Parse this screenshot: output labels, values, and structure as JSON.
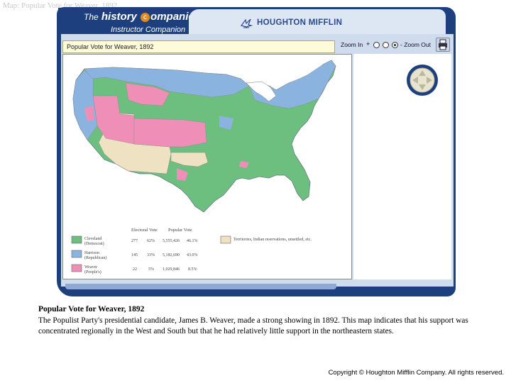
{
  "slide": {
    "title": "Map: Popular Vote for Weaver, 1892"
  },
  "header": {
    "brand_the": "The",
    "brand_history": "history",
    "brand_badge": "c",
    "brand_companion": "ompanion",
    "brand_subtitle": "Instructor Companion",
    "publisher": "HOUGHTON MIFFLIN",
    "publisher_logo_icon": "bird-logo-icon"
  },
  "viewer": {
    "map_title": "Popular Vote for Weaver, 1892",
    "zoom_in_label": "Zoom In",
    "zoom_plus": "+",
    "zoom_out_label": "- Zoom Out",
    "zoom_selected": 3,
    "print_icon": "printer-icon",
    "pan_icon": "pan-arrows-icon"
  },
  "legend": {
    "headers": {
      "electoral": "Electoral Vote",
      "popular": "Popular Vote"
    },
    "candidates": [
      {
        "name": "Cleveland",
        "party": "(Democrat)",
        "electoral": "277",
        "electoral_pct": "62%",
        "popular": "5,555,426",
        "popular_pct": "46.1%",
        "color": "#6cbf7e"
      },
      {
        "name": "Harrison",
        "party": "(Republican)",
        "electoral": "145",
        "electoral_pct": "33%",
        "popular": "5,182,690",
        "popular_pct": "43.0%",
        "color": "#8ab4df"
      },
      {
        "name": "Weaver",
        "party": "(People's)",
        "electoral": "22",
        "electoral_pct": "5%",
        "popular": "1,029,846",
        "popular_pct": "8.5%",
        "color": "#ef8fb8"
      }
    ],
    "territories": {
      "label": "Territories, Indian reservations, unsettled, etc.",
      "color": "#efe2c2"
    }
  },
  "caption": {
    "title": "Popular Vote for Weaver, 1892",
    "body": "The Populist Party's presidential candidate, James B. Weaver, made a strong showing in 1892. This map indicates that his support was concentrated regionally in the West and South but that he had relatively little support in the northeastern states."
  },
  "footer": {
    "copyright": "Copyright © Houghton Mifflin Company. All rights reserved."
  }
}
